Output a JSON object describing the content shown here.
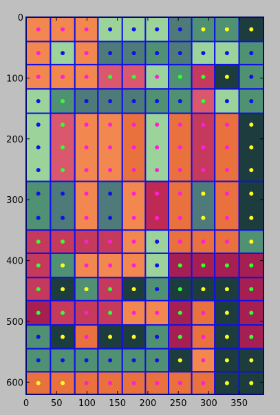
{
  "chart_data": {
    "type": "heatmap",
    "title": "",
    "xlabel": "",
    "ylabel": "",
    "xlim": [
      0,
      390
    ],
    "ylim": [
      0,
      620
    ],
    "y_inverted": true,
    "xticks": [
      "0",
      "50",
      "100",
      "150",
      "200",
      "250",
      "300",
      "350"
    ],
    "xtick_values": [
      0,
      50,
      100,
      150,
      200,
      250,
      300,
      350
    ],
    "yticks": [
      "0",
      "100",
      "200",
      "300",
      "400",
      "500",
      "600"
    ],
    "ytick_values": [
      0,
      100,
      200,
      300,
      400,
      500,
      600
    ],
    "grid": false,
    "column_edges": [
      0,
      40,
      80,
      118,
      158,
      196,
      234,
      272,
      310,
      350,
      390
    ],
    "row_edges": [
      0,
      40,
      78,
      118,
      158,
      270,
      350,
      388,
      428,
      466,
      506,
      545,
      583,
      620
    ],
    "cell_outline_color": "#1010e8",
    "dot_palette": {
      "m": "#ff1ed8",
      "b": "#1010e8",
      "y": "#ffff20",
      "g": "#30ff30"
    },
    "palette": {
      "O": "#f2874f",
      "L": "#9bd39b",
      "T": "#4f9172",
      "S": "#4f7a7a",
      "D": "#1c3c3e",
      "C": "#c53a5c",
      "R": "#bf2a55",
      "P": "#d9586e",
      "V": "#a51f52",
      "A": "#e8713e"
    },
    "cells": [
      {
        "y0": 0,
        "y1": 40,
        "colors": [
          "O",
          "O",
          "O",
          "L",
          "L",
          "L",
          "S",
          "T",
          "T",
          "D"
        ],
        "dots": [
          [
            "m",
            20
          ],
          [
            "m",
            60
          ],
          [
            "m",
            99
          ],
          [
            "b",
            138
          ],
          [
            "b",
            177
          ],
          [
            "b",
            215
          ],
          [
            "b",
            253
          ],
          [
            "y",
            291
          ],
          [
            "y",
            330
          ],
          [
            "y",
            370
          ]
        ]
      },
      {
        "y0": 40,
        "y1": 78,
        "colors": [
          "O",
          "L",
          "O",
          "S",
          "S",
          "T",
          "S",
          "L",
          "L",
          "T"
        ],
        "dots": [
          [
            "m",
            59
          ],
          [
            "b",
            59
          ],
          [
            "m",
            59
          ],
          [
            "b",
            59
          ],
          [
            "b",
            59
          ],
          [
            "b",
            59
          ],
          [
            "b",
            59
          ],
          [
            "b",
            59
          ],
          [
            "b",
            59
          ],
          [
            "b",
            59
          ]
        ]
      },
      {
        "y0": 78,
        "y1": 118,
        "colors": [
          "O",
          "O",
          "O",
          "P",
          "P",
          "L",
          "T",
          "C",
          "D",
          "T"
        ],
        "dots": [
          [
            "m",
            98
          ],
          [
            "m",
            98
          ],
          [
            "m",
            98
          ],
          [
            "g",
            98
          ],
          [
            "g",
            98
          ],
          [
            "m",
            98
          ],
          [
            "g",
            98
          ],
          [
            "g",
            98
          ],
          [
            "y",
            98
          ],
          [
            "b",
            98
          ]
        ]
      },
      {
        "y0": 118,
        "y1": 158,
        "colors": [
          "L",
          "T",
          "S",
          "S",
          "S",
          "T",
          "T",
          "P",
          "L",
          "T"
        ],
        "dots": [
          [
            "b",
            138
          ],
          [
            "g",
            138
          ],
          [
            "b",
            138
          ],
          [
            "b",
            138
          ],
          [
            "b",
            138
          ],
          [
            "b",
            138
          ],
          [
            "b",
            138
          ],
          [
            "g",
            138
          ],
          [
            "b",
            138
          ],
          [
            "b",
            138
          ]
        ]
      },
      {
        "y0": 158,
        "y1": 270,
        "colors": [
          "L",
          "P",
          "O",
          "O",
          "A",
          "L",
          "A",
          "C",
          "A",
          "D"
        ],
        "dots": [
          [
            "b",
            176
          ],
          [
            "g",
            176
          ],
          [
            "m",
            176
          ],
          [
            "m",
            176
          ],
          [
            "m",
            176
          ],
          [
            "m",
            176
          ],
          [
            "m",
            176
          ],
          [
            "m",
            176
          ],
          [
            "m",
            176
          ],
          [
            "y",
            176
          ]
        ]
      },
      {
        "y0": 270,
        "y1": 350,
        "colors": [
          "T",
          "S",
          "O",
          "S",
          "O",
          "R",
          "A",
          "S",
          "A",
          "D"
        ],
        "dots": [
          [
            "b",
            292
          ],
          [
            "b",
            292
          ],
          [
            "m",
            292
          ],
          [
            "b",
            292
          ],
          [
            "m",
            292
          ],
          [
            "m",
            292
          ],
          [
            "m",
            292
          ],
          [
            "y",
            292
          ],
          [
            "m",
            292
          ],
          [
            "y",
            292
          ]
        ]
      },
      {
        "y0": 350,
        "y1": 388,
        "colors": [
          "C",
          "C",
          "C",
          "C",
          "O",
          "L",
          "A",
          "A",
          "A",
          "T"
        ],
        "dots": [
          [
            "g",
            369
          ],
          [
            "g",
            369
          ],
          [
            "m",
            369
          ],
          [
            "m",
            369
          ],
          [
            "m",
            369
          ],
          [
            "b",
            369
          ],
          [
            "m",
            369
          ],
          [
            "m",
            369
          ],
          [
            "m",
            369
          ],
          [
            "y",
            369
          ]
        ]
      },
      {
        "y0": 388,
        "y1": 428,
        "colors": [
          "C",
          "T",
          "O",
          "O",
          "O",
          "L",
          "V",
          "V",
          "V",
          "V"
        ],
        "dots": [
          [
            "g",
            408
          ],
          [
            "y",
            408
          ],
          [
            "m",
            408
          ],
          [
            "m",
            408
          ],
          [
            "m",
            408
          ],
          [
            "b",
            408
          ],
          [
            "g",
            408
          ],
          [
            "g",
            408
          ],
          [
            "g",
            408
          ],
          [
            "g",
            408
          ]
        ]
      },
      {
        "y0": 428,
        "y1": 466,
        "colors": [
          "C",
          "D",
          "T",
          "C",
          "D",
          "T",
          "D",
          "D",
          "D",
          "V"
        ],
        "dots": [
          [
            "g",
            447
          ],
          [
            "y",
            447
          ],
          [
            "y",
            447
          ],
          [
            "g",
            447
          ],
          [
            "y",
            447
          ],
          [
            "b",
            447
          ],
          [
            "g",
            447
          ],
          [
            "y",
            447
          ],
          [
            "y",
            447
          ],
          [
            "g",
            447
          ]
        ]
      },
      {
        "y0": 466,
        "y1": 506,
        "colors": [
          "V",
          "C",
          "C",
          "C",
          "O",
          "O",
          "V",
          "A",
          "D",
          "V"
        ],
        "dots": [
          [
            "g",
            487
          ],
          [
            "g",
            487
          ],
          [
            "m",
            487
          ],
          [
            "g",
            487
          ],
          [
            "m",
            487
          ],
          [
            "m",
            487
          ],
          [
            "g",
            487
          ],
          [
            "m",
            487
          ],
          [
            "y",
            487
          ],
          [
            "g",
            487
          ]
        ]
      },
      {
        "y0": 506,
        "y1": 545,
        "colors": [
          "T",
          "D",
          "A",
          "D",
          "D",
          "T",
          "V",
          "A",
          "D",
          "V"
        ],
        "dots": [
          [
            "b",
            527
          ],
          [
            "y",
            527
          ],
          [
            "m",
            527
          ],
          [
            "y",
            527
          ],
          [
            "y",
            527
          ],
          [
            "b",
            527
          ],
          [
            "g",
            527
          ],
          [
            "m",
            527
          ],
          [
            "y",
            527
          ],
          [
            "g",
            527
          ]
        ]
      },
      {
        "y0": 545,
        "y1": 583,
        "colors": [
          "T",
          "T",
          "T",
          "T",
          "T",
          "T",
          "D",
          "O",
          "D",
          "D"
        ],
        "dots": [
          [
            "b",
            564
          ],
          [
            "b",
            564
          ],
          [
            "b",
            564
          ],
          [
            "b",
            564
          ],
          [
            "b",
            564
          ],
          [
            "b",
            564
          ],
          [
            "y",
            564
          ],
          [
            "m",
            564
          ],
          [
            "y",
            564
          ],
          [
            "y",
            564
          ]
        ]
      },
      {
        "y0": 583,
        "y1": 620,
        "colors": [
          "A",
          "A",
          "A",
          "A",
          "A",
          "A",
          "A",
          "A",
          "D",
          "D"
        ],
        "dots": [
          [
            "y",
            602
          ],
          [
            "y",
            602
          ],
          [
            "m",
            602
          ],
          [
            "m",
            602
          ],
          [
            "m",
            602
          ],
          [
            "m",
            602
          ],
          [
            "m",
            602
          ],
          [
            "m",
            602
          ],
          [
            "y",
            602
          ],
          [
            "y",
            602
          ]
        ]
      }
    ]
  }
}
